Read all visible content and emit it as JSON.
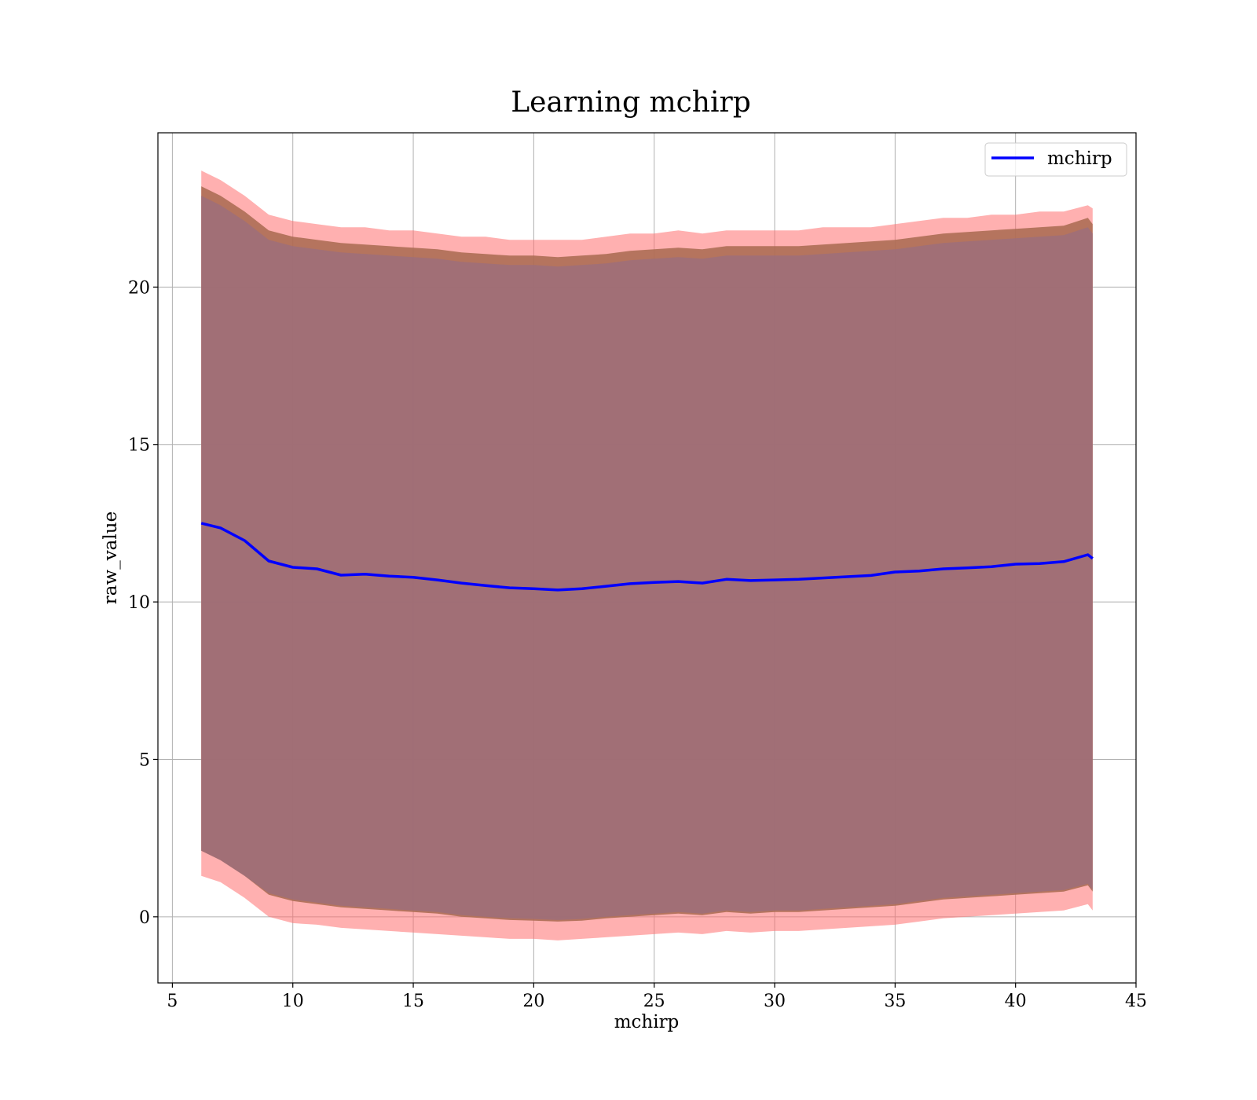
{
  "chart_data": {
    "type": "area",
    "title": "Learning mchirp",
    "xlabel": "mchirp",
    "ylabel": "raw_value",
    "xlim": [
      4.4,
      45
    ],
    "ylim": [
      -2.1,
      24.9
    ],
    "x_ticks": [
      5,
      10,
      15,
      20,
      25,
      30,
      35,
      40,
      45
    ],
    "y_ticks": [
      0,
      5,
      10,
      15,
      20
    ],
    "grid": true,
    "legend_position": "top-right",
    "x": [
      6.2,
      7.0,
      8.0,
      9.0,
      10.0,
      11.0,
      12.0,
      13.0,
      14.0,
      15.0,
      16.0,
      17.0,
      18.0,
      19.0,
      20.0,
      21.0,
      22.0,
      23.0,
      24.0,
      25.0,
      26.0,
      27.0,
      28.0,
      29.0,
      30.0,
      31.0,
      32.0,
      33.0,
      34.0,
      35.0,
      36.0,
      37.0,
      38.0,
      39.0,
      40.0,
      41.0,
      42.0,
      43.0,
      43.2
    ],
    "series": [
      {
        "name": "mchirp",
        "color": "#0000ff",
        "values": [
          12.5,
          12.35,
          11.95,
          11.3,
          11.1,
          11.05,
          10.85,
          10.88,
          10.82,
          10.78,
          10.7,
          10.6,
          10.52,
          10.45,
          10.42,
          10.38,
          10.42,
          10.5,
          10.58,
          10.62,
          10.65,
          10.6,
          10.72,
          10.68,
          10.7,
          10.72,
          10.76,
          10.8,
          10.84,
          10.95,
          10.98,
          11.05,
          11.08,
          11.12,
          11.2,
          11.22,
          11.28,
          11.5,
          11.38
        ]
      }
    ],
    "bands": [
      {
        "color": "#ff7070",
        "upper": [
          23.7,
          23.4,
          22.9,
          22.3,
          22.1,
          22.0,
          21.9,
          21.9,
          21.8,
          21.8,
          21.7,
          21.6,
          21.6,
          21.5,
          21.5,
          21.5,
          21.5,
          21.6,
          21.7,
          21.7,
          21.8,
          21.7,
          21.8,
          21.8,
          21.8,
          21.8,
          21.9,
          21.9,
          21.9,
          22.0,
          22.1,
          22.2,
          22.2,
          22.3,
          22.3,
          22.4,
          22.4,
          22.6,
          22.5
        ],
        "lower": [
          1.3,
          1.1,
          0.6,
          0.0,
          -0.2,
          -0.25,
          -0.35,
          -0.4,
          -0.45,
          -0.5,
          -0.55,
          -0.6,
          -0.65,
          -0.7,
          -0.7,
          -0.75,
          -0.7,
          -0.65,
          -0.6,
          -0.55,
          -0.5,
          -0.55,
          -0.45,
          -0.5,
          -0.45,
          -0.45,
          -0.4,
          -0.35,
          -0.3,
          -0.25,
          -0.15,
          -0.05,
          0.0,
          0.05,
          0.1,
          0.15,
          0.2,
          0.4,
          0.2
        ]
      },
      {
        "color": "#a86a50",
        "upper": [
          23.2,
          22.9,
          22.4,
          21.8,
          21.6,
          21.5,
          21.4,
          21.35,
          21.3,
          21.25,
          21.2,
          21.1,
          21.05,
          21.0,
          21.0,
          20.95,
          21.0,
          21.05,
          21.15,
          21.2,
          21.25,
          21.2,
          21.3,
          21.3,
          21.3,
          21.3,
          21.35,
          21.4,
          21.45,
          21.5,
          21.6,
          21.7,
          21.75,
          21.8,
          21.85,
          21.9,
          21.95,
          22.2,
          22.0
        ],
        "lower": [
          2.1,
          1.8,
          1.3,
          0.7,
          0.5,
          0.4,
          0.3,
          0.25,
          0.2,
          0.15,
          0.1,
          0.0,
          -0.05,
          -0.1,
          -0.12,
          -0.15,
          -0.12,
          -0.05,
          0.0,
          0.05,
          0.1,
          0.05,
          0.15,
          0.1,
          0.15,
          0.15,
          0.2,
          0.25,
          0.3,
          0.35,
          0.45,
          0.55,
          0.6,
          0.65,
          0.7,
          0.75,
          0.8,
          1.0,
          0.8
        ]
      },
      {
        "color": "#9e6e7a",
        "upper": [
          22.9,
          22.6,
          22.1,
          21.5,
          21.3,
          21.2,
          21.1,
          21.05,
          21.0,
          20.95,
          20.9,
          20.8,
          20.75,
          20.7,
          20.7,
          20.65,
          20.7,
          20.75,
          20.85,
          20.9,
          20.95,
          20.9,
          21.0,
          21.0,
          21.0,
          21.0,
          21.05,
          21.1,
          21.15,
          21.2,
          21.3,
          21.4,
          21.45,
          21.5,
          21.55,
          21.6,
          21.65,
          21.9,
          21.7
        ],
        "lower": [
          2.1,
          1.8,
          1.3,
          0.75,
          0.55,
          0.45,
          0.35,
          0.3,
          0.25,
          0.2,
          0.15,
          0.05,
          0.0,
          -0.05,
          -0.07,
          -0.1,
          -0.07,
          0.0,
          0.05,
          0.1,
          0.15,
          0.1,
          0.2,
          0.15,
          0.2,
          0.2,
          0.25,
          0.3,
          0.35,
          0.4,
          0.5,
          0.6,
          0.65,
          0.7,
          0.75,
          0.8,
          0.85,
          1.05,
          0.85
        ]
      }
    ]
  }
}
